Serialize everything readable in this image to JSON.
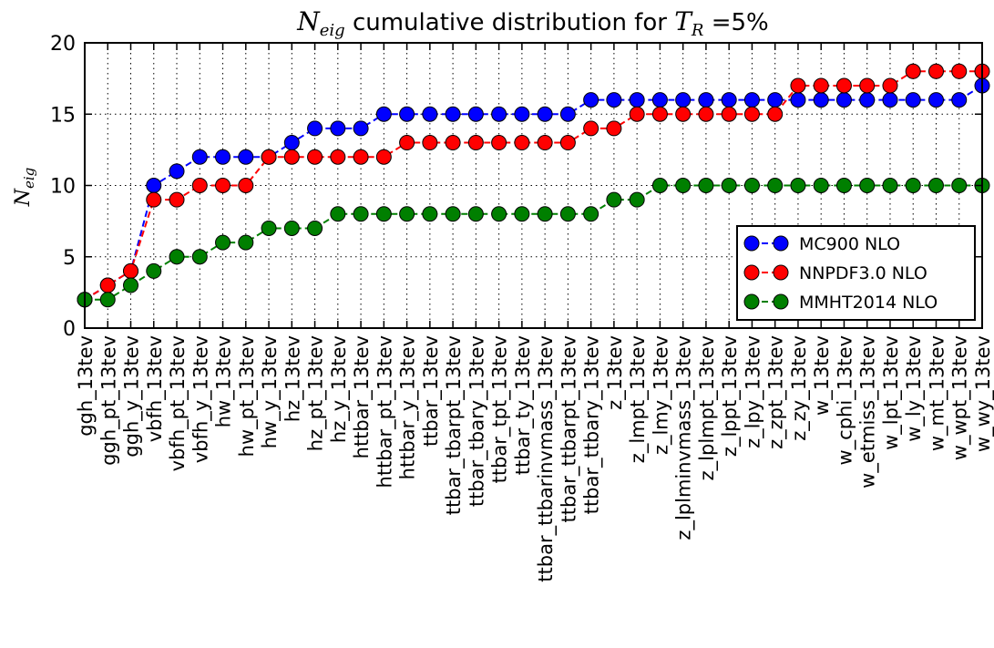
{
  "chart_data": {
    "type": "line",
    "title": {
      "n_main": "N",
      "n_sub": "eig",
      "middle": " cumulative distribution for ",
      "t_main": "T",
      "t_sub": "R",
      "suffix": " =5%"
    },
    "ylabel": {
      "main": "N",
      "sub": "eig"
    },
    "ylim": [
      0,
      20
    ],
    "yticks": [
      "0",
      "5",
      "10",
      "15",
      "20"
    ],
    "grid": true,
    "legend_position": "right",
    "categories": [
      "ggh_13tev",
      "ggh_pt_13tev",
      "ggh_y_13tev",
      "vbfh_13tev",
      "vbfh_pt_13tev",
      "vbfh_y_13tev",
      "hw_13tev",
      "hw_pt_13tev",
      "hw_y_13tev",
      "hz_13tev",
      "hz_pt_13tev",
      "hz_y_13tev",
      "httbar_13tev",
      "httbar_pt_13tev",
      "httbar_y_13tev",
      "ttbar_13tev",
      "ttbar_tbarpt_13tev",
      "ttbar_tbary_13tev",
      "ttbar_tpt_13tev",
      "ttbar_ty_13tev",
      "ttbar_ttbarinvmass_13tev",
      "ttbar_ttbarpt_13tev",
      "ttbar_ttbary_13tev",
      "z_13tev",
      "z_lmpt_13tev",
      "z_lmy_13tev",
      "z_lplminvmass_13tev",
      "z_lplmpt_13tev",
      "z_lppt_13tev",
      "z_lpy_13tev",
      "z_zpt_13tev",
      "z_zy_13tev",
      "w_13tev",
      "w_cphi_13tev",
      "w_etmiss_13tev",
      "w_lpt_13tev",
      "w_ly_13tev",
      "w_mt_13tev",
      "w_wpt_13tev",
      "w_wy_13tev"
    ],
    "series": [
      {
        "name": "MC900 NLO",
        "color": "#0000ff",
        "values": [
          2,
          3,
          4,
          10,
          11,
          12,
          12,
          12,
          12,
          13,
          14,
          14,
          14,
          15,
          15,
          15,
          15,
          15,
          15,
          15,
          15,
          15,
          16,
          16,
          16,
          16,
          16,
          16,
          16,
          16,
          16,
          16,
          16,
          16,
          16,
          16,
          16,
          16,
          16,
          17
        ]
      },
      {
        "name": "NNPDF3.0 NLO",
        "color": "#ff0000",
        "values": [
          2,
          3,
          4,
          9,
          9,
          10,
          10,
          10,
          12,
          12,
          12,
          12,
          12,
          12,
          13,
          13,
          13,
          13,
          13,
          13,
          13,
          13,
          14,
          14,
          15,
          15,
          15,
          15,
          15,
          15,
          15,
          17,
          17,
          17,
          17,
          17,
          18,
          18,
          18,
          18
        ]
      },
      {
        "name": "MMHT2014 NLO",
        "color": "#007f00",
        "values": [
          2,
          2,
          3,
          4,
          5,
          5,
          6,
          6,
          7,
          7,
          7,
          8,
          8,
          8,
          8,
          8,
          8,
          8,
          8,
          8,
          8,
          8,
          8,
          9,
          9,
          10,
          10,
          10,
          10,
          10,
          10,
          10,
          10,
          10,
          10,
          10,
          10,
          10,
          10,
          10
        ]
      }
    ]
  }
}
